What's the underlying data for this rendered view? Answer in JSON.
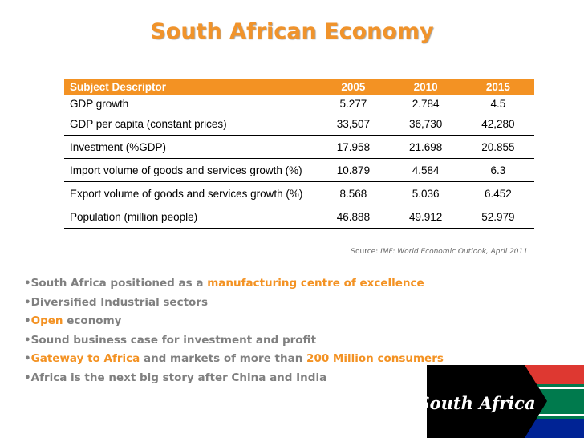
{
  "title": "South African Economy",
  "table": {
    "headers": [
      "Subject Descriptor",
      "2005",
      "2010",
      "2015"
    ],
    "rows": [
      [
        "GDP growth",
        "5.277",
        "2.784",
        "4.5"
      ],
      [
        "GDP per capita (constant prices)",
        "33,507",
        "36,730",
        "42,280"
      ],
      [
        "Investment (%GDP)",
        "17.958",
        "21.698",
        "20.855"
      ],
      [
        "Import volume of goods and services growth (%)",
        "10.879",
        "4.584",
        "6.3"
      ],
      [
        "Export volume of goods and services growth (%)",
        "8.568",
        "5.036",
        "6.452"
      ],
      [
        "Population (million people)",
        "46.888",
        "49.912",
        "52.979"
      ]
    ]
  },
  "source": {
    "prefix": "Source: ",
    "text": "IMF: World Economic Outlook, April 2011"
  },
  "bullets": [
    [
      {
        "t": "South Africa positioned as a "
      },
      {
        "t": "manufacturing centre of excellence",
        "h": true
      }
    ],
    [
      {
        "t": "Diversified Industrial sectors"
      }
    ],
    [
      {
        "t": "Open",
        "h": true
      },
      {
        "t": " economy"
      }
    ],
    [
      {
        "t": "Sound business case for investment and profit"
      }
    ],
    [
      {
        "t": "Gateway to Africa",
        "h": true
      },
      {
        "t": " and markets of more than "
      },
      {
        "t": "200 Million consumers",
        "h": true
      }
    ],
    [
      {
        "t": "Africa is the next big story after China and India"
      }
    ]
  ],
  "bullet_symbol": "•",
  "logo": {
    "text": "South Africa",
    "flag_colors": [
      "#007a4d",
      "#000000",
      "#ffb612",
      "#de3831",
      "#002395",
      "#ffffff"
    ]
  },
  "colors": {
    "accent": "#f39223",
    "bullet_text": "#808080"
  }
}
